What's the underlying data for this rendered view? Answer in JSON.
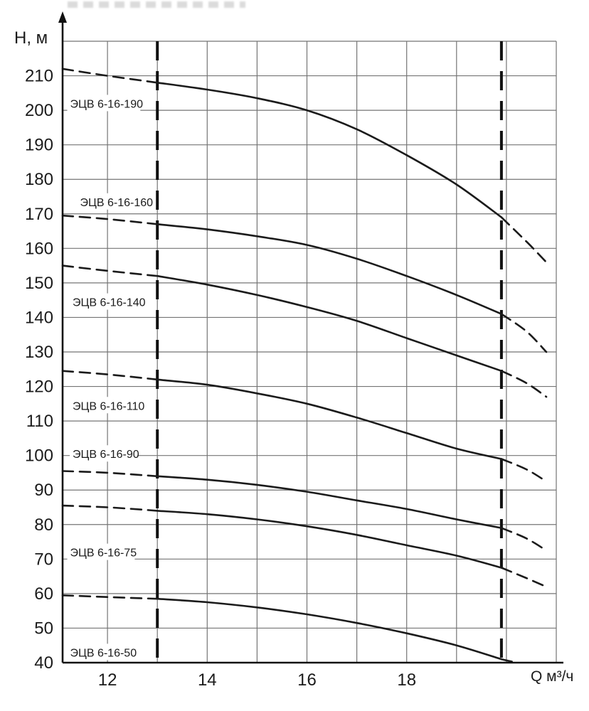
{
  "chart_data": {
    "type": "line",
    "title": "",
    "xlabel": "Q м³/ч",
    "ylabel": "Н, м",
    "xlim": [
      11.1,
      21.0
    ],
    "ylim": [
      40,
      220
    ],
    "grid": true,
    "grid_x_start": 12,
    "grid_x_end": 21,
    "grid_step_x": 1,
    "grid_step_y": 10,
    "x_ticks": [
      12,
      14,
      16,
      18
    ],
    "y_ticks": [
      40,
      50,
      60,
      70,
      80,
      90,
      100,
      110,
      120,
      130,
      140,
      150,
      160,
      170,
      180,
      190,
      200,
      210
    ],
    "working_range_boundaries": [
      13,
      19.9
    ],
    "colors": {
      "curve": "#1b1b1b",
      "grid": "#757575",
      "axis": "#111111",
      "label_text": "#1b1b1b",
      "label_bg": "#ffffff"
    },
    "series": [
      {
        "name": "ЭЦВ 6-16-190",
        "label_pos": [
          11.25,
          202
        ],
        "points": [
          [
            11.1,
            212
          ],
          [
            12,
            210
          ],
          [
            13,
            208
          ],
          [
            14,
            206
          ],
          [
            15,
            203.5
          ],
          [
            16,
            200
          ],
          [
            17,
            194.5
          ],
          [
            18,
            187
          ],
          [
            19,
            178.5
          ],
          [
            19.9,
            169
          ],
          [
            20.4,
            162
          ],
          [
            20.8,
            156
          ]
        ]
      },
      {
        "name": "ЭЦВ 6-16-160",
        "label_pos": [
          11.45,
          173.5
        ],
        "points": [
          [
            11.1,
            169.5
          ],
          [
            12,
            168.5
          ],
          [
            13,
            167
          ],
          [
            14,
            165.5
          ],
          [
            15,
            163.5
          ],
          [
            16,
            161
          ],
          [
            17,
            157
          ],
          [
            18,
            152
          ],
          [
            19,
            146.5
          ],
          [
            19.9,
            141
          ],
          [
            20.4,
            136
          ],
          [
            20.8,
            130
          ]
        ]
      },
      {
        "name": "ЭЦВ 6-16-140",
        "label_pos": [
          11.3,
          144.5
        ],
        "points": [
          [
            11.1,
            155
          ],
          [
            12,
            153.5
          ],
          [
            13,
            152
          ],
          [
            14,
            149.5
          ],
          [
            15,
            146.5
          ],
          [
            16,
            143
          ],
          [
            17,
            139
          ],
          [
            18,
            134
          ],
          [
            19,
            129
          ],
          [
            19.9,
            124.5
          ],
          [
            20.4,
            121
          ],
          [
            20.8,
            117
          ]
        ]
      },
      {
        "name": "ЭЦВ 6-16-110",
        "label_pos": [
          11.3,
          114.5
        ],
        "points": [
          [
            11.1,
            124.5
          ],
          [
            12,
            123.5
          ],
          [
            13,
            122
          ],
          [
            14,
            120.5
          ],
          [
            15,
            118
          ],
          [
            16,
            115
          ],
          [
            17,
            111
          ],
          [
            18,
            106.5
          ],
          [
            19,
            102
          ],
          [
            19.9,
            99
          ],
          [
            20.4,
            96
          ],
          [
            20.8,
            92.5
          ]
        ]
      },
      {
        "name": "ЭЦВ 6-16-90",
        "label_pos": [
          11.3,
          100.5
        ],
        "points": [
          [
            11.1,
            95.5
          ],
          [
            12,
            95
          ],
          [
            13,
            94
          ],
          [
            14,
            93
          ],
          [
            15,
            91.5
          ],
          [
            16,
            89.5
          ],
          [
            17,
            87
          ],
          [
            18,
            84.5
          ],
          [
            19,
            81.5
          ],
          [
            19.9,
            79
          ],
          [
            20.4,
            76
          ],
          [
            20.8,
            72.5
          ]
        ]
      },
      {
        "name": "ЭЦВ 6-16-75",
        "label_pos": [
          11.25,
          72
        ],
        "points": [
          [
            11.1,
            85.5
          ],
          [
            12,
            85
          ],
          [
            13,
            84
          ],
          [
            14,
            83
          ],
          [
            15,
            81.5
          ],
          [
            16,
            79.5
          ],
          [
            17,
            77
          ],
          [
            18,
            74
          ],
          [
            19,
            71
          ],
          [
            19.9,
            67.5
          ],
          [
            20.4,
            64.5
          ],
          [
            20.8,
            62
          ]
        ]
      },
      {
        "name": "ЭЦВ 6-16-50",
        "label_pos": [
          11.25,
          43
        ],
        "points": [
          [
            11.1,
            59.5
          ],
          [
            12,
            59
          ],
          [
            13,
            58.5
          ],
          [
            14,
            57.5
          ],
          [
            15,
            56
          ],
          [
            16,
            54
          ],
          [
            17,
            51.5
          ],
          [
            18,
            48.5
          ],
          [
            19,
            45
          ],
          [
            19.9,
            41
          ],
          [
            20.2,
            40
          ]
        ]
      }
    ]
  }
}
